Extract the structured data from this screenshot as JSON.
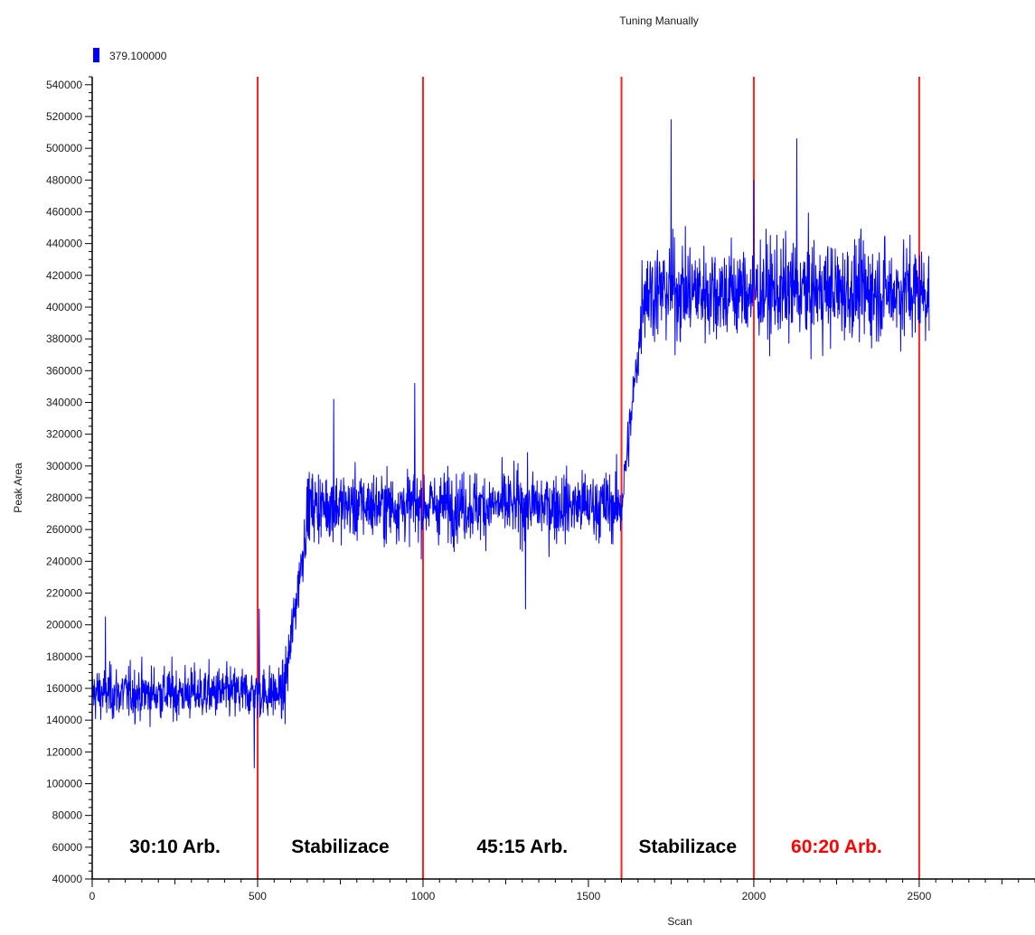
{
  "chart_data": {
    "type": "line",
    "title": "Tuning Manually",
    "xlabel": "Scan",
    "ylabel": "Peak Area",
    "xlim": [
      0,
      2850
    ],
    "ylim": [
      40000,
      545000
    ],
    "x_ticks": [
      0,
      500,
      1000,
      1500,
      2000,
      2500
    ],
    "x_tick_labels": [
      "0",
      "500",
      "1000",
      "1500",
      "2000",
      "2500"
    ],
    "y_ticks": [
      40000,
      60000,
      80000,
      100000,
      120000,
      140000,
      160000,
      180000,
      200000,
      220000,
      240000,
      260000,
      280000,
      300000,
      320000,
      340000,
      360000,
      380000,
      400000,
      420000,
      440000,
      460000,
      480000,
      500000,
      520000,
      540000
    ],
    "y_tick_labels": [
      "40000",
      "60000",
      "80000",
      "100000",
      "120000",
      "140000",
      "160000",
      "180000",
      "200000",
      "220000",
      "240000",
      "260000",
      "280000",
      "300000",
      "320000",
      "340000",
      "360000",
      "380000",
      "400000",
      "420000",
      "440000",
      "460000",
      "480000",
      "500000",
      "520000",
      "540000"
    ],
    "grid": false,
    "legend": {
      "position": "top-left",
      "entries": [
        {
          "label": "379.100000",
          "color": "#0000ff"
        }
      ]
    },
    "series": [
      {
        "name": "379.100000",
        "color": "#0000ff",
        "x_range": [
          0,
          2530
        ],
        "approx_levels": [
          {
            "x_start": 0,
            "x_end": 580,
            "mean": 157000
          },
          {
            "x_start": 580,
            "x_end": 650,
            "transition_to": 268000
          },
          {
            "x_start": 650,
            "x_end": 1600,
            "mean": 275000
          },
          {
            "x_start": 1600,
            "x_end": 1660,
            "transition_to": 390000
          },
          {
            "x_start": 1660,
            "x_end": 2530,
            "mean": 410000
          }
        ],
        "notable_points": [
          {
            "x": 40,
            "y": 205000
          },
          {
            "x": 490,
            "y": 110000
          },
          {
            "x": 505,
            "y": 210000
          },
          {
            "x": 730,
            "y": 342000
          },
          {
            "x": 975,
            "y": 352000
          },
          {
            "x": 1310,
            "y": 210000
          },
          {
            "x": 1750,
            "y": 518000
          },
          {
            "x": 2000,
            "y": 480000
          },
          {
            "x": 2130,
            "y": 506000
          }
        ]
      }
    ],
    "vertical_lines": [
      {
        "x": 500,
        "color": "#ff2020"
      },
      {
        "x": 1000,
        "color": "#ff2020"
      },
      {
        "x": 1600,
        "color": "#ff2020"
      },
      {
        "x": 2000,
        "color": "#ff2020"
      },
      {
        "x": 2500,
        "color": "#ff2020"
      }
    ],
    "annotations": [
      {
        "text": "30:10 Arb.",
        "x": 250,
        "y": 60000,
        "color": "#000000"
      },
      {
        "text": "Stabilizace",
        "x": 750,
        "y": 60000,
        "color": "#000000"
      },
      {
        "text": "45:15 Arb.",
        "x": 1300,
        "y": 60000,
        "color": "#000000"
      },
      {
        "text": "Stabilizace",
        "x": 1800,
        "y": 60000,
        "color": "#000000"
      },
      {
        "text": "60:20 Arb.",
        "x": 2250,
        "y": 60000,
        "color": "#ff0000"
      }
    ]
  }
}
